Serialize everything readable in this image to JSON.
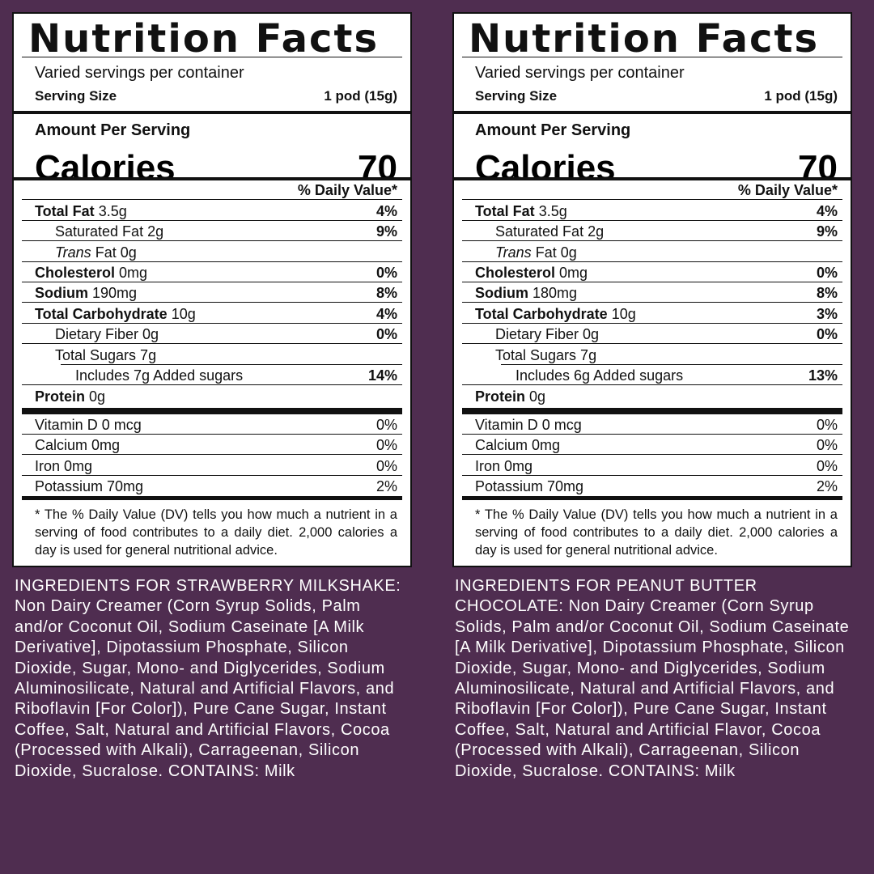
{
  "labels": [
    {
      "title": "Nutrition Facts",
      "servings": "Varied servings per container",
      "serving_size_label": "Serving Size",
      "serving_size_value": "1 pod (15g)",
      "amount_per_serving": "Amount Per Serving",
      "calories_label": "Calories",
      "calories_value": "70",
      "dv_header": "% Daily Value*",
      "total_fat_label": "Total Fat",
      "total_fat_amount": "3.5g",
      "total_fat_dv": "4%",
      "sat_fat": "Saturated Fat 2g",
      "sat_fat_dv": "9%",
      "trans_fat_label": "Trans",
      "trans_fat_rest": "Fat 0g",
      "cholesterol_label": "Cholesterol",
      "cholesterol_amount": "0mg",
      "cholesterol_dv": "0%",
      "sodium_label": "Sodium",
      "sodium_amount": "190mg",
      "sodium_dv": "8%",
      "carb_label": "Total Carbohydrate",
      "carb_amount": "10g",
      "carb_dv": "4%",
      "fiber": "Dietary Fiber 0g",
      "fiber_dv": "0%",
      "sugars": "Total Sugars 7g",
      "added_sugars": "Includes 7g Added sugars",
      "added_sugars_dv": "14%",
      "protein_label": "Protein",
      "protein_amount": "0g",
      "vit_d": "Vitamin D 0 mcg",
      "vit_d_dv": "0%",
      "calcium": "Calcium 0mg",
      "calcium_dv": "0%",
      "iron": "Iron 0mg",
      "iron_dv": "0%",
      "potassium": "Potassium 70mg",
      "potassium_dv": "2%",
      "footnote": "* The % Daily Value (DV) tells you how much a nutrient in a serving of food contributes to a daily diet. 2,000 calories a day is used for general nutritional advice.",
      "ingredients": "INGREDIENTS FOR STRAWBERRY MILKSHAKE: Non Dairy Creamer (Corn Syrup Solids, Palm and/or Coconut Oil, Sodium Caseinate [A Milk Derivative], Dipotassium Phosphate, Silicon Dioxide, Sugar, Mono- and Diglycerides, Sodium Aluminosilicate, Natural and Artificial Flavors, and Riboflavin [For Color]), Pure Cane Sugar, Instant Coffee, Salt, Natural and Artificial Flavors, Cocoa (Processed with Alkali), Carrageenan, Silicon Dioxide, Sucralose. CONTAINS: Milk"
    },
    {
      "title": "Nutrition Facts",
      "servings": "Varied servings per container",
      "serving_size_label": "Serving Size",
      "serving_size_value": "1 pod (15g)",
      "amount_per_serving": "Amount Per Serving",
      "calories_label": "Calories",
      "calories_value": "70",
      "dv_header": "% Daily Value*",
      "total_fat_label": "Total Fat",
      "total_fat_amount": "3.5g",
      "total_fat_dv": "4%",
      "sat_fat": "Saturated Fat 2g",
      "sat_fat_dv": "9%",
      "trans_fat_label": "Trans",
      "trans_fat_rest": "Fat 0g",
      "cholesterol_label": "Cholesterol",
      "cholesterol_amount": "0mg",
      "cholesterol_dv": "0%",
      "sodium_label": "Sodium",
      "sodium_amount": "180mg",
      "sodium_dv": "8%",
      "carb_label": "Total Carbohydrate",
      "carb_amount": "10g",
      "carb_dv": "3%",
      "fiber": "Dietary Fiber 0g",
      "fiber_dv": "0%",
      "sugars": "Total Sugars 7g",
      "added_sugars": "Includes 6g Added sugars",
      "added_sugars_dv": "13%",
      "protein_label": "Protein",
      "protein_amount": "0g",
      "vit_d": "Vitamin D 0 mcg",
      "vit_d_dv": "0%",
      "calcium": "Calcium 0mg",
      "calcium_dv": "0%",
      "iron": "Iron 0mg",
      "iron_dv": "0%",
      "potassium": "Potassium 70mg",
      "potassium_dv": "2%",
      "footnote": "* The % Daily Value (DV) tells you how much a nutrient in a serving of food contributes to a daily diet. 2,000 calories a day is used for general nutritional advice.",
      "ingredients": "INGREDIENTS FOR PEANUT BUTTER CHOCOLATE: Non Dairy Creamer (Corn Syrup Solids, Palm and/or Coconut Oil, Sodium Caseinate [A Milk Derivative], Dipotassium Phosphate, Silicon Dioxide, Sugar, Mono- and Diglycerides, Sodium Aluminosilicate, Natural and Artificial Flavors, and Riboflavin [For Color]), Pure Cane Sugar, Instant Coffee, Salt, Natural and Artificial Flavor, Cocoa (Processed with Alkali), Carrageenan, Silicon Dioxide, Sucralose. CONTAINS: Milk"
    }
  ],
  "colors": {
    "background": "#4f2d50",
    "label_bg": "#ffffff",
    "ink": "#111111"
  }
}
